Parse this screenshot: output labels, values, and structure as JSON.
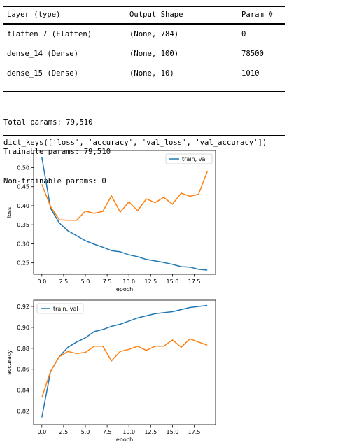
{
  "model_summary": {
    "headers": [
      "Layer (type)",
      "Output Shape",
      "Param #"
    ],
    "rows": [
      {
        "layer": "flatten_7 (Flatten)",
        "shape": "(None, 784)",
        "params": "0"
      },
      {
        "layer": "dense_14 (Dense)",
        "shape": "(None, 100)",
        "params": "78500"
      },
      {
        "layer": "dense_15 (Dense)",
        "shape": "(None, 10)",
        "params": "1010"
      }
    ],
    "total": "Total params: 79,510",
    "trainable": "Trainable params: 79,510",
    "non_trainable": "Non-trainable params: 0"
  },
  "history_keys_output": "dict_keys(['loss', 'accuracy', 'val_loss', 'val_accuracy'])",
  "colors": {
    "train": "#1f77b4",
    "val": "#ff7f0e",
    "axis": "#000000",
    "text": "#000000"
  },
  "chart_data": [
    {
      "type": "line",
      "xlabel": "epoch",
      "ylabel": "loss",
      "legend_label": "train, val",
      "legend_position": "top-right",
      "grid": false,
      "xlim": [
        -0.95,
        19.95
      ],
      "ylim": [
        0.22,
        0.545
      ],
      "xticks": [
        0.0,
        2.5,
        5.0,
        7.5,
        10.0,
        12.5,
        15.0,
        17.5
      ],
      "xtick_labels": [
        "0.0",
        "2.5",
        "5.0",
        "7.5",
        "10.0",
        "12.5",
        "15.0",
        "17.5"
      ],
      "yticks": [
        0.25,
        0.3,
        0.35,
        0.4,
        0.45,
        0.5
      ],
      "ytick_labels": [
        "0.25",
        "0.30",
        "0.35",
        "0.40",
        "0.45",
        "0.50"
      ],
      "x": [
        0,
        1,
        2,
        3,
        4,
        5,
        6,
        7,
        8,
        9,
        10,
        11,
        12,
        13,
        14,
        15,
        16,
        17,
        18,
        19
      ],
      "series": [
        {
          "values": [
            0.527,
            0.393,
            0.355,
            0.334,
            0.321,
            0.308,
            0.299,
            0.291,
            0.282,
            0.279,
            0.271,
            0.266,
            0.259,
            0.255,
            0.251,
            0.246,
            0.24,
            0.239,
            0.233,
            0.231
          ]
        },
        {
          "values": [
            0.456,
            0.398,
            0.363,
            0.362,
            0.362,
            0.386,
            0.38,
            0.385,
            0.426,
            0.383,
            0.41,
            0.387,
            0.418,
            0.408,
            0.422,
            0.404,
            0.433,
            0.425,
            0.43,
            0.49
          ]
        }
      ]
    },
    {
      "type": "line",
      "xlabel": "epoch",
      "ylabel": "accuracy",
      "legend_label": "train, val",
      "legend_position": "top-left",
      "grid": false,
      "xlim": [
        -0.95,
        19.95
      ],
      "ylim": [
        0.807,
        0.926
      ],
      "xticks": [
        0.0,
        2.5,
        5.0,
        7.5,
        10.0,
        12.5,
        15.0,
        17.5
      ],
      "xtick_labels": [
        "0.0",
        "2.5",
        "5.0",
        "7.5",
        "10.0",
        "12.5",
        "15.0",
        "17.5"
      ],
      "yticks": [
        0.82,
        0.84,
        0.86,
        0.88,
        0.9,
        0.92
      ],
      "ytick_labels": [
        "0.82",
        "0.84",
        "0.86",
        "0.88",
        "0.90",
        "0.92"
      ],
      "x": [
        0,
        1,
        2,
        3,
        4,
        5,
        6,
        7,
        8,
        9,
        10,
        11,
        12,
        13,
        14,
        15,
        16,
        17,
        18,
        19
      ],
      "series": [
        {
          "values": [
            0.814,
            0.858,
            0.872,
            0.881,
            0.886,
            0.89,
            0.896,
            0.898,
            0.901,
            0.903,
            0.906,
            0.909,
            0.911,
            0.913,
            0.914,
            0.915,
            0.917,
            0.919,
            0.92,
            0.921
          ]
        },
        {
          "values": [
            0.833,
            0.858,
            0.872,
            0.877,
            0.875,
            0.876,
            0.882,
            0.882,
            0.868,
            0.877,
            0.879,
            0.882,
            0.878,
            0.882,
            0.882,
            0.888,
            0.881,
            0.889,
            0.886,
            0.883
          ]
        }
      ]
    }
  ]
}
